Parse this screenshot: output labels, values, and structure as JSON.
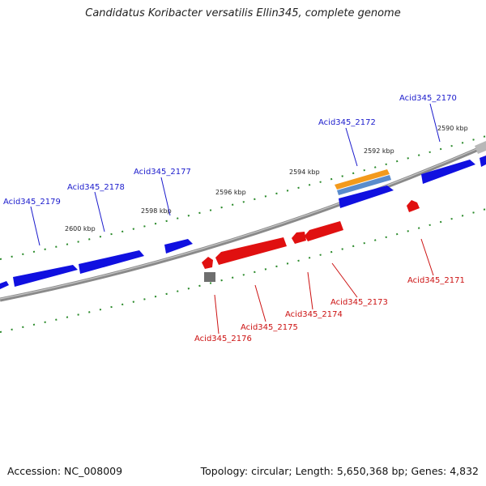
{
  "title": "Candidatus Koribacter versatilis Ellin345, complete genome",
  "footer": {
    "accession": "Accession: NC_008009",
    "summary": "Topology: circular; Length: 5,650,368 bp; Genes: 4,832"
  },
  "colors": {
    "forward_gene": "#1010e0",
    "reverse_gene": "#e01010",
    "forward_label": "#1a1acc",
    "reverse_label": "#cc1111",
    "tick": "#2a8a2a",
    "backbone": "#8a8a8a",
    "highlight_orange": "#f39a1c",
    "highlight_blue": "#5a8ccc",
    "gray_gene": "#9a9a9a"
  },
  "scale_labels": [
    "2590 kbp",
    "2592 kbp",
    "2594 kbp",
    "2596 kbp",
    "2598 kbp",
    "2600 kbp"
  ],
  "forward_genes": [
    "Acid345_2170",
    "Acid345_2172",
    "Acid345_2177",
    "Acid345_2178",
    "Acid345_2179"
  ],
  "reverse_genes": [
    "Acid345_2171",
    "Acid345_2173",
    "Acid345_2174",
    "Acid345_2175",
    "Acid345_2176"
  ]
}
